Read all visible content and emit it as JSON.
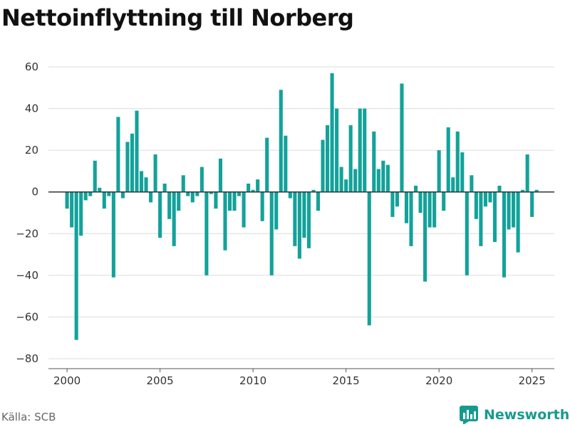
{
  "title": "Nettoinflyttning till Norberg",
  "source": "Källa: SCB",
  "brand": {
    "name": "Newsworthy",
    "logo_icon": "newsworthy-chart-icon"
  },
  "colors": {
    "bar": "#13a29a",
    "brand": "#179a8e",
    "grid": "#dcdcdc",
    "zero_line": "#333333"
  },
  "chart_data": {
    "type": "bar",
    "title": "Nettoinflyttning till Norberg",
    "frequency": "quarterly",
    "xlim": [
      1999.0,
      2026.2
    ],
    "ylim": [
      -80,
      60
    ],
    "xticks": [
      2000,
      2005,
      2010,
      2015,
      2020,
      2025
    ],
    "yticks": [
      -80,
      -60,
      -40,
      -20,
      0,
      20,
      40,
      60
    ],
    "grid": "horizontal",
    "series": [
      {
        "x": [
          2000.0,
          2000.25,
          2000.5,
          2000.75,
          2001.0,
          2001.25,
          2001.5,
          2001.75,
          2002.0,
          2002.25,
          2002.5,
          2002.75,
          2003.0,
          2003.25,
          2003.5,
          2003.75,
          2004.0,
          2004.25,
          2004.5,
          2004.75,
          2005.0,
          2005.25,
          2005.5,
          2005.75,
          2006.0,
          2006.25,
          2006.5,
          2006.75,
          2007.0,
          2007.25,
          2007.5,
          2007.75,
          2008.0,
          2008.25,
          2008.5,
          2008.75,
          2009.0,
          2009.25,
          2009.5,
          2009.75,
          2010.0,
          2010.25,
          2010.5,
          2010.75,
          2011.0,
          2011.25,
          2011.5,
          2011.75,
          2012.0,
          2012.25,
          2012.5,
          2012.75,
          2013.0,
          2013.25,
          2013.5,
          2013.75,
          2014.0,
          2014.25,
          2014.5,
          2014.75,
          2015.0,
          2015.25,
          2015.5,
          2015.75,
          2016.0,
          2016.25,
          2016.5,
          2016.75,
          2017.0,
          2017.25,
          2017.5,
          2017.75,
          2018.0,
          2018.25,
          2018.5,
          2018.75,
          2019.0,
          2019.25,
          2019.5,
          2019.75,
          2020.0,
          2020.25,
          2020.5,
          2020.75,
          2021.0,
          2021.25,
          2021.5,
          2021.75,
          2022.0,
          2022.25,
          2022.5,
          2022.75,
          2023.0,
          2023.25,
          2023.5,
          2023.75,
          2024.0,
          2024.25,
          2024.5,
          2024.75,
          2025.0,
          2025.25
        ],
        "values": [
          -8,
          -17,
          -71,
          -21,
          -4,
          -2,
          15,
          2,
          -8,
          -2,
          -41,
          36,
          -3,
          24,
          28,
          39,
          10,
          7,
          -5,
          18,
          -22,
          4,
          -13,
          -26,
          -9,
          8,
          -2,
          -5,
          -2,
          12,
          -40,
          -1,
          -8,
          16,
          -28,
          -9,
          -9,
          -2,
          -17,
          4,
          1,
          6,
          -14,
          26,
          -40,
          -18,
          49,
          27,
          -3,
          -26,
          -32,
          -22,
          -27,
          1,
          -9,
          25,
          32,
          57,
          40,
          12,
          6,
          32,
          11,
          40,
          40,
          -64,
          29,
          11,
          15,
          13,
          -12,
          -7,
          52,
          -15,
          -26,
          3,
          -10,
          -43,
          -17,
          -17,
          20,
          -9,
          31,
          7,
          29,
          19,
          -40,
          8,
          -13,
          -26,
          -7,
          -5,
          -24,
          3,
          -41,
          -18,
          -17,
          -29,
          1,
          18,
          -12,
          1
        ]
      }
    ]
  }
}
